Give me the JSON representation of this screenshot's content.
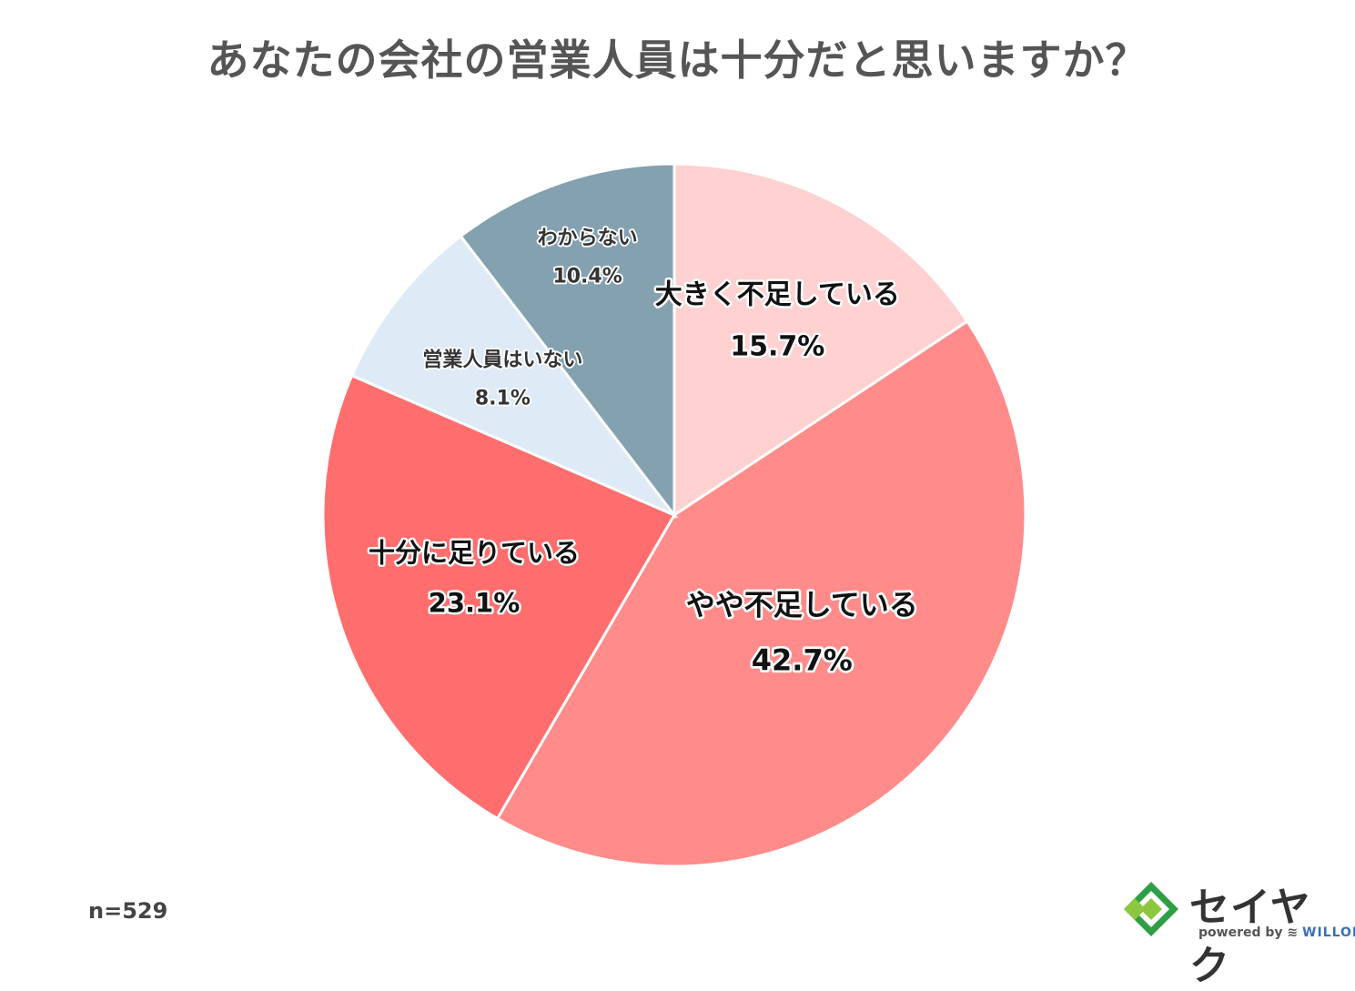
{
  "chart_data": {
    "type": "pie",
    "title": "あなたの会社の営業人員は十分だと思いますか？",
    "slices": [
      {
        "label": "大きく不足している",
        "value": 15.7,
        "value_label": "15.7%",
        "color": "#ffd1d1"
      },
      {
        "label": "やや不足している",
        "value": 42.7,
        "value_label": "42.7%",
        "color": "#ff8b8b"
      },
      {
        "label": "十分に足りている",
        "value": 23.1,
        "value_label": "23.1%",
        "color": "#ff6e6e"
      },
      {
        "label": "営業人員はいない",
        "value": 8.1,
        "value_label": "8.1%",
        "color": "#deeaf6"
      },
      {
        "label": "わからない",
        "value": 10.4,
        "value_label": "10.4%",
        "color": "#84a1b0"
      }
    ],
    "start": "12 o'clock",
    "direction": "clockwise",
    "legend": "none"
  },
  "note": {
    "sample_size": "n=529"
  },
  "logo": {
    "brand": "セイヤク",
    "powered_by": "powered by",
    "partner": "WILLOF",
    "colors": [
      "#2e9f46",
      "#8dc63f"
    ]
  }
}
